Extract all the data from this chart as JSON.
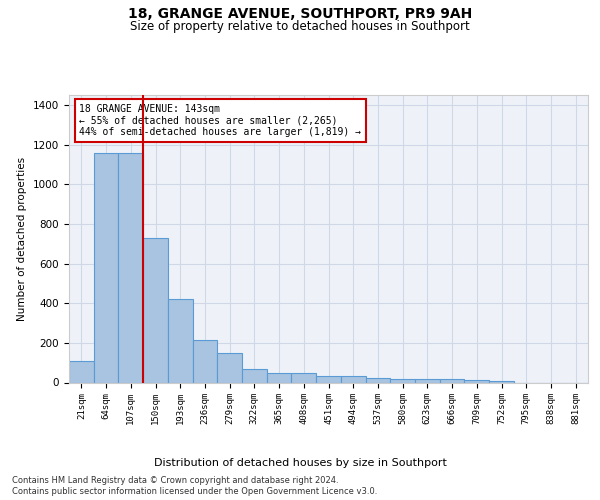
{
  "title": "18, GRANGE AVENUE, SOUTHPORT, PR9 9AH",
  "subtitle": "Size of property relative to detached houses in Southport",
  "xlabel": "Distribution of detached houses by size in Southport",
  "ylabel": "Number of detached properties",
  "footer_line1": "Contains HM Land Registry data © Crown copyright and database right 2024.",
  "footer_line2": "Contains public sector information licensed under the Open Government Licence v3.0.",
  "categories": [
    "21sqm",
    "64sqm",
    "107sqm",
    "150sqm",
    "193sqm",
    "236sqm",
    "279sqm",
    "322sqm",
    "365sqm",
    "408sqm",
    "451sqm",
    "494sqm",
    "537sqm",
    "580sqm",
    "623sqm",
    "666sqm",
    "709sqm",
    "752sqm",
    "795sqm",
    "838sqm",
    "881sqm"
  ],
  "values": [
    110,
    1155,
    1155,
    730,
    420,
    215,
    150,
    70,
    48,
    50,
    32,
    32,
    22,
    18,
    18,
    18,
    15,
    10,
    0,
    0,
    0
  ],
  "bar_color": "#a8c4e0",
  "bar_edge_color": "#5b9bd5",
  "bar_linewidth": 0.8,
  "grid_color": "#d0d8e8",
  "bg_color": "#eef2f8",
  "red_line_x": 2.5,
  "red_line_color": "#cc0000",
  "annotation_text": "18 GRANGE AVENUE: 143sqm\n← 55% of detached houses are smaller (2,265)\n44% of semi-detached houses are larger (1,819) →",
  "annotation_box_color": "#ffffff",
  "annotation_box_edge": "#cc0000",
  "ylim": [
    0,
    1450
  ],
  "yticks": [
    0,
    200,
    400,
    600,
    800,
    1000,
    1200,
    1400
  ]
}
